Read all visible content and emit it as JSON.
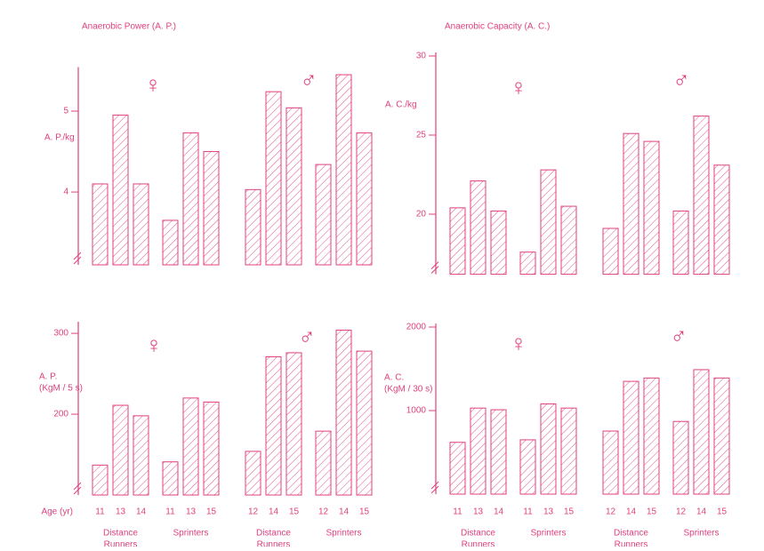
{
  "chart_data": [
    {
      "type": "bar",
      "title": "Anaerobic Power (A. P.)",
      "ylabel": [
        "A. P./kg"
      ],
      "color": "#e0407e",
      "annotations": [
        "♀",
        "♂"
      ],
      "values": [
        4.1,
        4.95,
        4.1,
        3.65,
        4.73,
        4.5,
        4.03,
        5.24,
        5.04,
        4.34,
        5.45,
        4.73
      ],
      "ylim": [
        3.1,
        5.5
      ],
      "yticks": [
        4,
        5
      ]
    },
    {
      "type": "bar",
      "title": "Anaerobic Capacity (A. C.)",
      "ylabel": [
        "A. C./kg"
      ],
      "color": "#e0407e",
      "annotations": [
        "♀",
        "♂"
      ],
      "values": [
        20.4,
        22.1,
        20.2,
        17.6,
        22.8,
        20.5,
        19.1,
        25.1,
        24.6,
        20.2,
        26.2,
        23.1
      ],
      "ylim": [
        16.2,
        30
      ],
      "yticks": [
        20,
        25,
        30
      ]
    },
    {
      "type": "bar",
      "ylabel": [
        "A. P.",
        "(KgM / 5 s)"
      ],
      "xlabel": "Age (yr)",
      "color": "#e0407e",
      "annotations": [
        "♀",
        "♂"
      ],
      "categories": [
        "11",
        "13",
        "14",
        "11",
        "13",
        "15",
        "12",
        "14",
        "15",
        "12",
        "14",
        "15"
      ],
      "group_labels": [
        [
          "Distance",
          "Runners"
        ],
        [
          "Sprinters"
        ],
        [
          "Distance",
          "Runners"
        ],
        [
          "Sprinters"
        ]
      ],
      "values": [
        137,
        211,
        198,
        141,
        220,
        215,
        154,
        271,
        276,
        179,
        304,
        278
      ],
      "ylim": [
        100,
        310
      ],
      "yticks": [
        200,
        300
      ]
    },
    {
      "type": "bar",
      "ylabel": [
        "A. C.",
        "(KgM / 30 s)"
      ],
      "color": "#e0407e",
      "annotations": [
        "♀",
        "♂"
      ],
      "categories": [
        "11",
        "13",
        "14",
        "11",
        "13",
        "15",
        "12",
        "14",
        "15",
        "12",
        "14",
        "15"
      ],
      "group_labels": [
        [
          "Distance",
          "Runners"
        ],
        [
          "Sprinters"
        ],
        [
          "Distance",
          "Runners"
        ],
        [
          "Sprinters"
        ]
      ],
      "values": [
        620,
        1030,
        1010,
        650,
        1080,
        1030,
        755,
        1350,
        1390,
        870,
        1490,
        1390
      ],
      "ylim": [
        0,
        2000
      ],
      "yticks": [
        1000,
        2000
      ]
    }
  ]
}
